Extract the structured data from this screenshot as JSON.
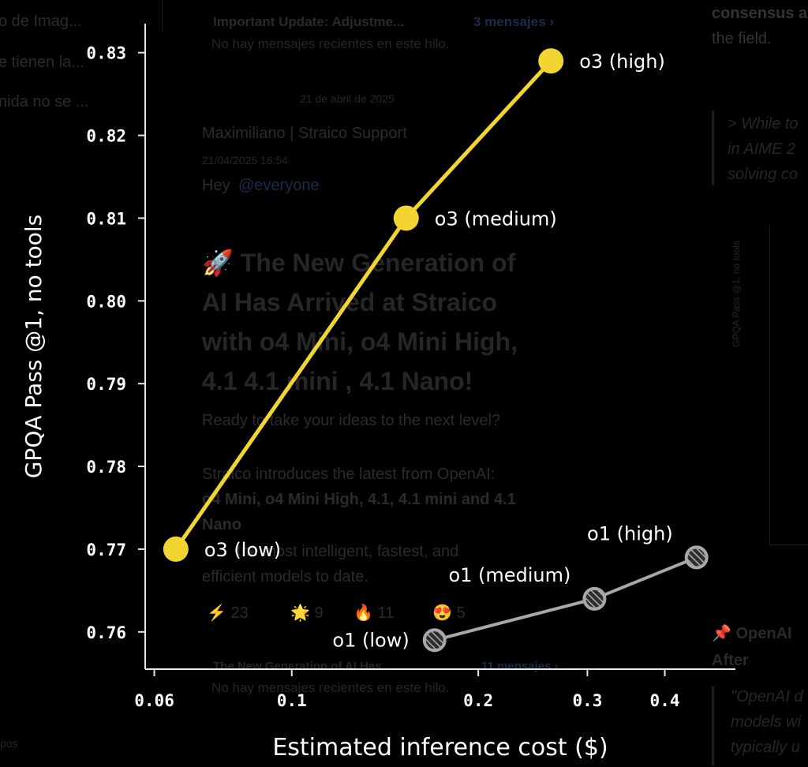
{
  "background": {
    "left_snippets": [
      "o de Imag...",
      "e tienen la...",
      "nida no se ...",
      "pos"
    ],
    "thread_header": "Important Update: Adjustme...",
    "thread_count": "3 mensajes ›",
    "no_recent": "No hay mensajes recientes en este hilo.",
    "date_divider": "21 de abril de 2025",
    "author": "Maximiliano | Straico Support",
    "timestamp": "21/04/2025 16:54",
    "greeting_prefix": "Hey",
    "mention": "@everyone",
    "headline_lines": [
      "🚀 The New Generation of",
      "AI Has Arrived at Straico",
      "with o4 Mini, o4 Mini High,",
      "4.1  4.1 mini ,  4.1 Nano!"
    ],
    "body_line1": "Ready to take your ideas to the next level?",
    "body_line2": "Straico introduces the latest from OpenAI:",
    "body_line3": "o4 Mini, o4 Mini High, 4.1,  4.1 mini and  4.1",
    "body_line4": "Nano",
    "body_line5": "the most intelligent, fastest, and",
    "body_line6": "efficient models to date.",
    "reactions": [
      "⚡ 23",
      "🌟 9",
      "🔥 11",
      "😍 5"
    ],
    "thread2_header": "The New Generation of AI Has...",
    "thread2_count": "11 mensajes ›",
    "right_top1": "consensus a",
    "right_top2": "the field.",
    "right_quote": [
      "> While to",
      "in AIME 2",
      "solving co"
    ],
    "right_pin": "📌 OpenAI",
    "right_after": "After",
    "right_quote2": [
      "\"OpenAI d",
      "models wi",
      "typically u"
    ],
    "mini_ylabel": "GPQA Pass @1, no tools",
    "mini_ticks": [
      "0.83",
      "0.82",
      "0.81",
      "0.80",
      "0.79",
      "0.78",
      "0.77",
      "0.76"
    ]
  },
  "chart_data": {
    "type": "scatter",
    "xlabel": "Estimated inference cost ($)",
    "ylabel": "GPQA Pass @1, no tools",
    "xscale": "log",
    "xlim": [
      0.058,
      0.52
    ],
    "ylim": [
      0.7555,
      0.8335
    ],
    "xticks": [
      0.06,
      0.1,
      0.2,
      0.3,
      0.4
    ],
    "xtick_labels": [
      "0.06",
      "0.1",
      "0.2",
      "0.3",
      "0.4"
    ],
    "yticks": [
      0.76,
      0.77,
      0.78,
      0.79,
      0.8,
      0.81,
      0.82,
      0.83
    ],
    "ytick_labels": [
      "0.76",
      "0.77",
      "0.78",
      "0.79",
      "0.80",
      "0.81",
      "0.82",
      "0.83"
    ],
    "grid": false,
    "series": [
      {
        "name": "o3",
        "color": "#f2d530",
        "marker": "filled",
        "points": [
          {
            "label": "o3 (low)",
            "x": 0.065,
            "y": 0.77
          },
          {
            "label": "o3 (medium)",
            "x": 0.153,
            "y": 0.81
          },
          {
            "label": "o3 (high)",
            "x": 0.262,
            "y": 0.829
          }
        ]
      },
      {
        "name": "o1",
        "color": "#a8a8a8",
        "marker": "hatched",
        "points": [
          {
            "label": "o1 (low)",
            "x": 0.17,
            "y": 0.759
          },
          {
            "label": "o1 (medium)",
            "x": 0.308,
            "y": 0.764
          },
          {
            "label": "o1 (high)",
            "x": 0.45,
            "y": 0.769
          }
        ]
      }
    ]
  }
}
